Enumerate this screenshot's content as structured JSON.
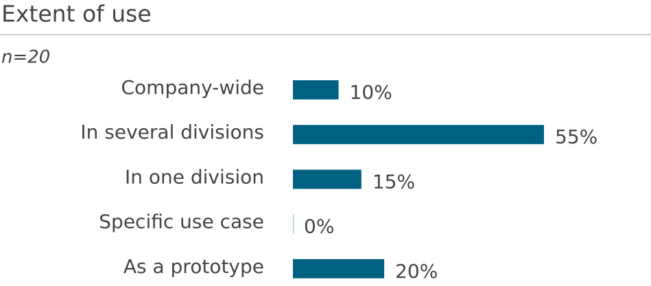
{
  "chart_data": {
    "type": "bar",
    "orientation": "horizontal",
    "title": "Extent of use",
    "subtitle": "n=20",
    "categories": [
      "Company-wide",
      "In several divisions",
      "In one division",
      "Specific use case",
      "As a prototype"
    ],
    "values": [
      10,
      55,
      15,
      0,
      20
    ],
    "value_labels": [
      "10%",
      "55%",
      "15%",
      "0%",
      "20%"
    ],
    "color": "#006280"
  }
}
